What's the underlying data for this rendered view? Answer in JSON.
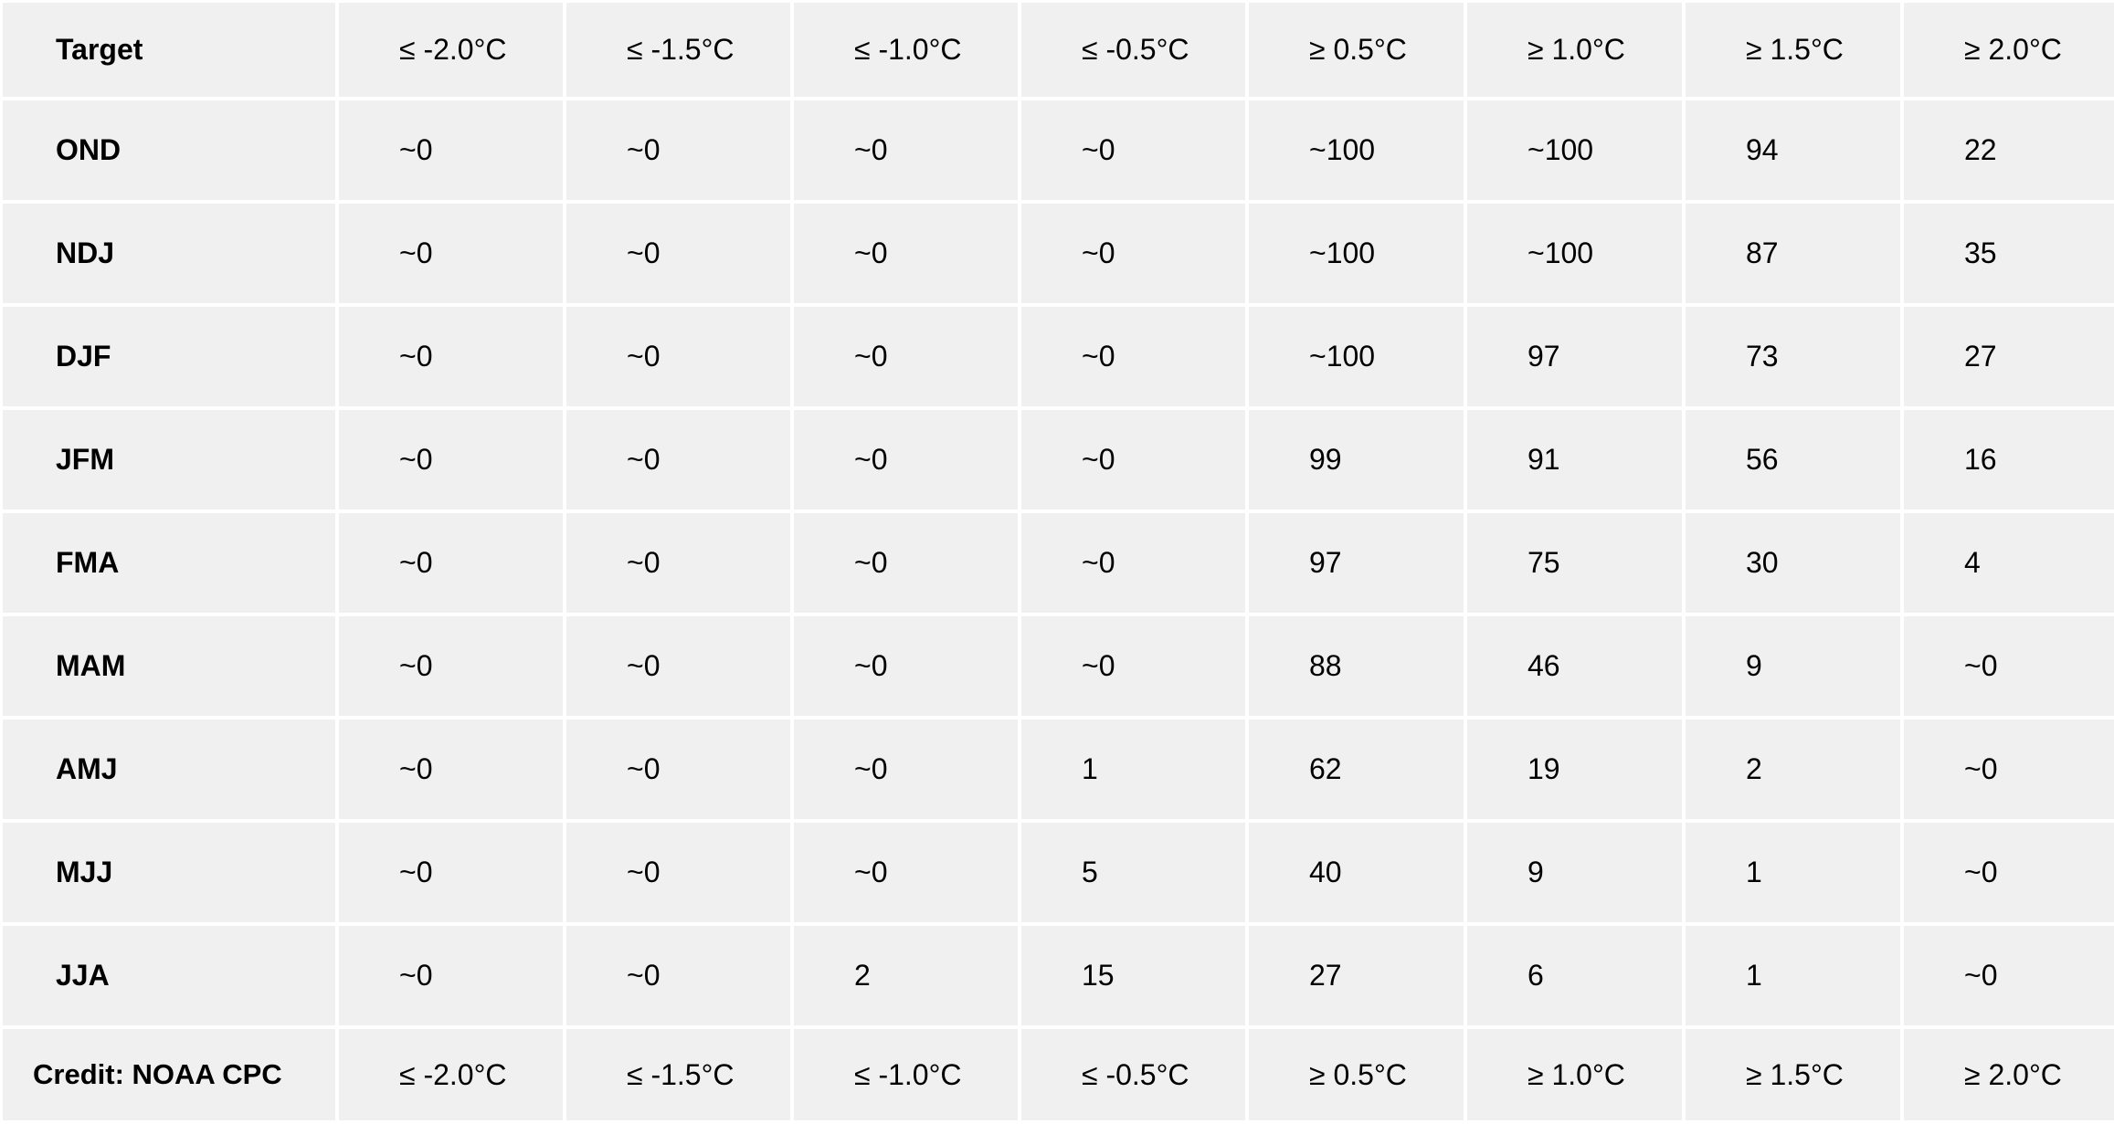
{
  "table": {
    "corner_label": "Target",
    "columns": [
      "≤ -2.0°C",
      "≤ -1.5°C",
      "≤ -1.0°C",
      "≤ -0.5°C",
      "≥ 0.5°C",
      "≥ 1.0°C",
      "≥ 1.5°C",
      "≥ 2.0°C"
    ],
    "rows": [
      {
        "label": "OND",
        "values": [
          "~0",
          "~0",
          "~0",
          "~0",
          "~100",
          "~100",
          "94",
          "22"
        ]
      },
      {
        "label": "NDJ",
        "values": [
          "~0",
          "~0",
          "~0",
          "~0",
          "~100",
          "~100",
          "87",
          "35"
        ]
      },
      {
        "label": "DJF",
        "values": [
          "~0",
          "~0",
          "~0",
          "~0",
          "~100",
          "97",
          "73",
          "27"
        ]
      },
      {
        "label": "JFM",
        "values": [
          "~0",
          "~0",
          "~0",
          "~0",
          "99",
          "91",
          "56",
          "16"
        ]
      },
      {
        "label": "FMA",
        "values": [
          "~0",
          "~0",
          "~0",
          "~0",
          "97",
          "75",
          "30",
          "4"
        ]
      },
      {
        "label": "MAM",
        "values": [
          "~0",
          "~0",
          "~0",
          "~0",
          "88",
          "46",
          "9",
          "~0"
        ]
      },
      {
        "label": "AMJ",
        "values": [
          "~0",
          "~0",
          "~0",
          "1",
          "62",
          "19",
          "2",
          "~0"
        ]
      },
      {
        "label": "MJJ",
        "values": [
          "~0",
          "~0",
          "~0",
          "5",
          "40",
          "9",
          "1",
          "~0"
        ]
      },
      {
        "label": "JJA",
        "values": [
          "~0",
          "~0",
          "2",
          "15",
          "27",
          "6",
          "1",
          "~0"
        ]
      }
    ],
    "footer": {
      "credit": "Credit: NOAA CPC",
      "columns": [
        "≤ -2.0°C",
        "≤ -1.5°C",
        "≤ -1.0°C",
        "≤ -0.5°C",
        "≥ 0.5°C",
        "≥ 1.0°C",
        "≥ 1.5°C",
        "≥ 2.0°C"
      ]
    }
  },
  "colors": {
    "cell_background": "#f0f0f0",
    "grid_lines": "#ffffff",
    "text": "#000000"
  }
}
